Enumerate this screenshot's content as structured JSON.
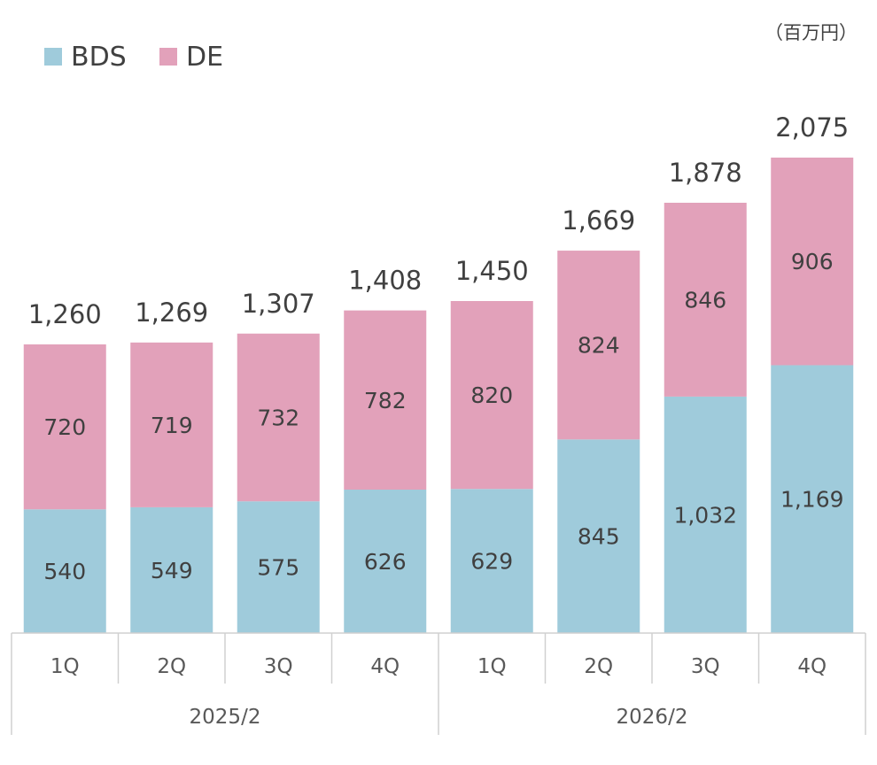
{
  "chart_data": {
    "type": "bar",
    "stacked": true,
    "unit": "（百万円）",
    "categories": [
      "1Q",
      "2Q",
      "3Q",
      "4Q",
      "1Q",
      "2Q",
      "3Q",
      "4Q"
    ],
    "groups": [
      {
        "label": "2025/2",
        "span": 4
      },
      {
        "label": "2026/2",
        "span": 4
      }
    ],
    "series": [
      {
        "name": "BDS",
        "color": "#9fcbdb",
        "values": [
          540,
          549,
          575,
          626,
          629,
          845,
          1032,
          1169
        ]
      },
      {
        "name": "DE",
        "color": "#e2a1ba",
        "values": [
          720,
          719,
          732,
          782,
          820,
          824,
          846,
          906
        ]
      }
    ],
    "totals": [
      1260,
      1269,
      1307,
      1408,
      1450,
      1669,
      1878,
      2075
    ],
    "legend_position": "top-left",
    "grid": false,
    "ylim": [
      0,
      2200
    ]
  }
}
